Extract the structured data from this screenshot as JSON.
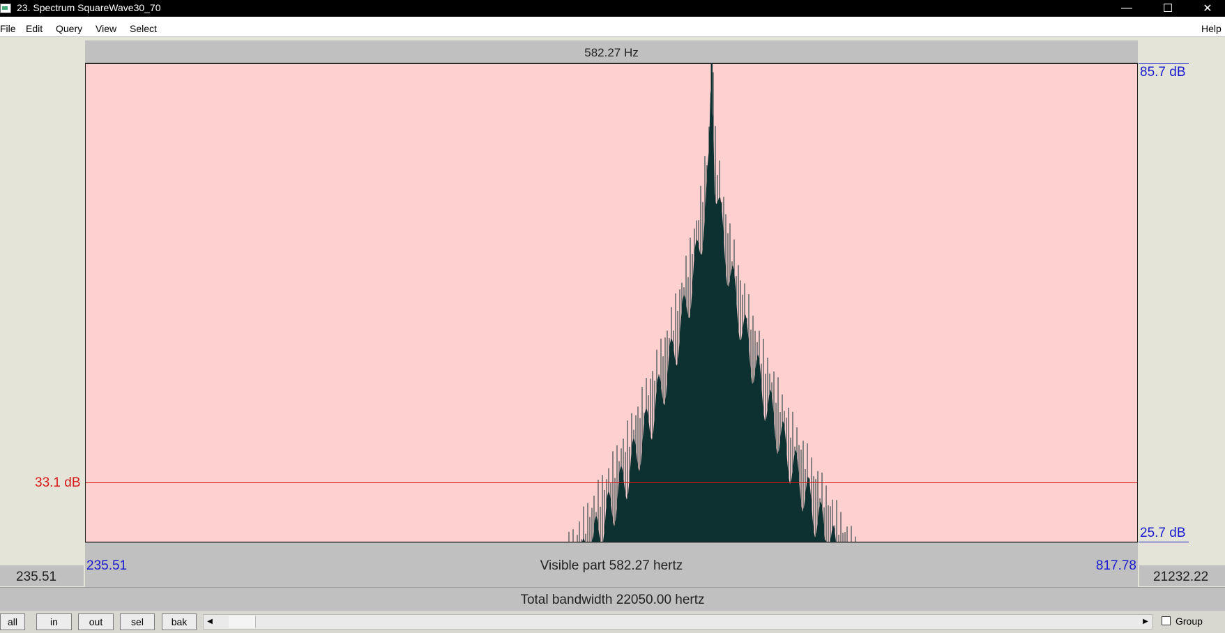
{
  "window": {
    "title": "23. Spectrum SquareWave30_70",
    "minimize_glyph": "—",
    "maximize_glyph": "☐",
    "close_glyph": "✕"
  },
  "menu": {
    "file": "File",
    "edit": "Edit",
    "query": "Query",
    "view": "View",
    "select": "Select",
    "help": "Help"
  },
  "spectrum": {
    "cursor_frequency": "582.27 Hz",
    "db_top": "85.7 dB",
    "db_bottom": "25.7 dB",
    "cursor_db": "33.1 dB",
    "visible_start": "235.51",
    "visible_end": "817.78",
    "visible_part": "Visible part 582.27 hertz",
    "total_start": "235.51",
    "total_end": "21232.22",
    "total_bandwidth": "Total bandwidth 22050.00 hertz",
    "colors": {
      "background": "#ffd0d0",
      "trace": "#0d3030",
      "cursor": "#d81818",
      "labels": "#1a1ad0"
    }
  },
  "chart_data": {
    "type": "line",
    "x_range": [
      235.51,
      817.78
    ],
    "y_range": [
      25.7,
      85.7
    ],
    "cursor": {
      "x": 582.27,
      "y": 33.1
    },
    "peak": {
      "x": 582.27,
      "y": 85.7
    }
  },
  "toolbar": {
    "all": "all",
    "in": "in",
    "out": "out",
    "sel": "sel",
    "bak": "bak",
    "scroll_left": "◀",
    "scroll_right": "▶",
    "group": "Group"
  }
}
